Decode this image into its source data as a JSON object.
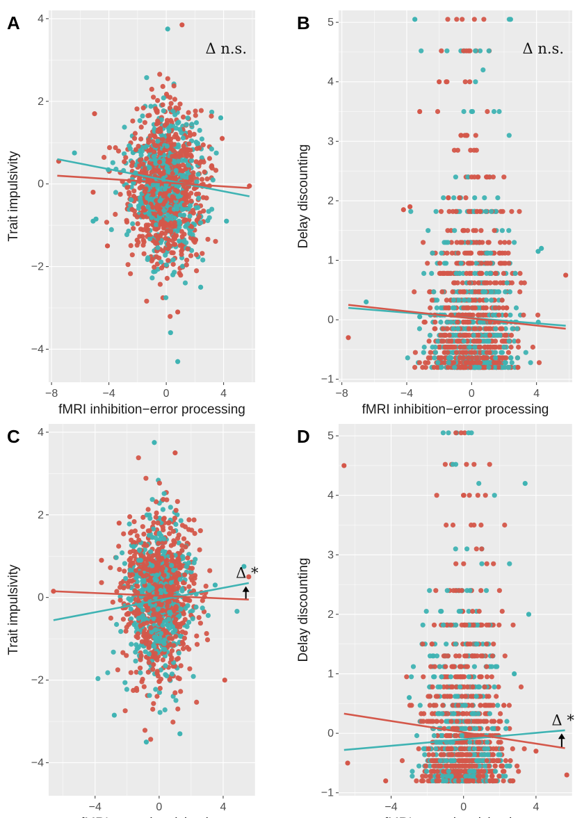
{
  "colors": {
    "group_red": "#d4574a",
    "group_teal": "#3fb3b3",
    "panel_bg": "#ebebeb",
    "grid": "#ffffff"
  },
  "chart_data": [
    {
      "letter": "A",
      "type": "scatter",
      "xlabel": "fMRI inhibition−error processing",
      "ylabel": "Trait impulsivity",
      "xlim": [
        -8.2,
        6.2
      ],
      "ylim": [
        -4.8,
        4.2
      ],
      "xticks": [
        -8,
        -4,
        0,
        4
      ],
      "yticks": [
        -4,
        -2,
        0,
        2,
        4
      ],
      "grid": true,
      "annotation": {
        "text": "Δ n.s.",
        "arrow": false
      },
      "lines": [
        {
          "color": "teal",
          "x": [
            -7.6,
            5.8
          ],
          "y": [
            0.6,
            -0.3
          ]
        },
        {
          "color": "red",
          "x": [
            -7.6,
            5.8
          ],
          "y": [
            0.2,
            -0.1
          ]
        }
      ],
      "scatter": {
        "discrete": false,
        "n": 1300,
        "sdx": 1.35,
        "sdy": 0.95,
        "meany": 0.0,
        "outliers_red": [
          [
            -7.5,
            0.55
          ],
          [
            -5.0,
            1.7
          ],
          [
            -5.1,
            -0.2
          ],
          [
            -4.1,
            -1.5
          ],
          [
            3.9,
            1.1
          ],
          [
            5.8,
            -0.05
          ],
          [
            1.1,
            3.85
          ],
          [
            0.8,
            -3.1
          ]
        ],
        "outliers_teal": [
          [
            -6.4,
            0.75
          ],
          [
            -4.9,
            -0.85
          ],
          [
            -5.1,
            -0.9
          ],
          [
            3.8,
            1.6
          ],
          [
            4.2,
            -0.9
          ],
          [
            0.1,
            3.75
          ],
          [
            0.8,
            -4.3
          ],
          [
            0.3,
            -3.6
          ],
          [
            2.4,
            -2.5
          ]
        ]
      }
    },
    {
      "letter": "B",
      "type": "scatter",
      "xlabel": "fMRI inhibition−error processing",
      "ylabel": "Delay discounting",
      "xlim": [
        -8.2,
        6.2
      ],
      "ylim": [
        -1.05,
        5.2
      ],
      "xticks": [
        -8,
        -4,
        0,
        4
      ],
      "yticks": [
        -1,
        0,
        1,
        2,
        3,
        4,
        5
      ],
      "grid": true,
      "annotation": {
        "text": "Δ n.s.",
        "arrow": false
      },
      "lines": [
        {
          "color": "teal",
          "x": [
            -7.6,
            5.8
          ],
          "y": [
            0.2,
            -0.1
          ]
        },
        {
          "color": "red",
          "x": [
            -7.6,
            5.8
          ],
          "y": [
            0.25,
            -0.15
          ]
        }
      ],
      "scatter": {
        "discrete": true,
        "n": 1300,
        "sdx": 1.3,
        "outliers_red": [
          [
            -7.6,
            -0.3
          ],
          [
            -4.2,
            1.85
          ],
          [
            -3.8,
            1.9
          ],
          [
            5.8,
            0.75
          ],
          [
            -3.2,
            3.5
          ],
          [
            -2.0,
            4.0
          ]
        ],
        "outliers_teal": [
          [
            -3.5,
            5.05
          ],
          [
            2.4,
            5.05
          ],
          [
            -6.5,
            0.3
          ],
          [
            4.1,
            1.15
          ],
          [
            4.3,
            1.2
          ],
          [
            -3.2,
            0.05
          ]
        ]
      }
    },
    {
      "letter": "C",
      "type": "scatter",
      "xlabel": "fMRI reward anticipation",
      "ylabel": "Trait impulsivity",
      "xlim": [
        -6.9,
        6.0
      ],
      "ylim": [
        -4.8,
        4.2
      ],
      "xticks": [
        -4,
        0,
        4
      ],
      "yticks": [
        -4,
        -2,
        0,
        2,
        4
      ],
      "grid": true,
      "annotation": {
        "text": "Δ *",
        "arrow": true
      },
      "lines": [
        {
          "color": "teal",
          "x": [
            -6.6,
            5.6
          ],
          "y": [
            -0.55,
            0.35
          ]
        },
        {
          "color": "red",
          "x": [
            -6.6,
            5.6
          ],
          "y": [
            0.15,
            -0.05
          ]
        }
      ],
      "scatter": {
        "discrete": false,
        "n": 1300,
        "sdx": 1.1,
        "sdy": 0.95,
        "meany": 0.0,
        "outliers_red": [
          [
            -6.6,
            0.15
          ],
          [
            -3.6,
            0.9
          ],
          [
            4.1,
            -2.0
          ],
          [
            5.6,
            0.5
          ],
          [
            -2.5,
            1.8
          ],
          [
            1.0,
            3.5
          ]
        ],
        "outliers_teal": [
          [
            -2.8,
            -2.85
          ],
          [
            -0.8,
            -3.5
          ],
          [
            1.3,
            -3.3
          ],
          [
            -0.3,
            3.75
          ],
          [
            3.5,
            0.3
          ],
          [
            5.3,
            0.75
          ]
        ]
      }
    },
    {
      "letter": "D",
      "type": "scatter",
      "xlabel": "fMRI reward anticipation",
      "ylabel": "Delay discounting",
      "xlim": [
        -6.9,
        6.0
      ],
      "ylim": [
        -1.05,
        5.2
      ],
      "xticks": [
        -4,
        0,
        4
      ],
      "yticks": [
        -1,
        0,
        1,
        2,
        3,
        4,
        5
      ],
      "grid": true,
      "annotation": {
        "text": "Δ *",
        "arrow": true
      },
      "lines": [
        {
          "color": "teal",
          "x": [
            -6.6,
            5.6
          ],
          "y": [
            -0.28,
            0.05
          ]
        },
        {
          "color": "red",
          "x": [
            -6.6,
            5.6
          ],
          "y": [
            0.33,
            -0.25
          ]
        }
      ],
      "scatter": {
        "discrete": true,
        "n": 1300,
        "sdx": 1.1,
        "outliers_red": [
          [
            -6.6,
            4.5
          ],
          [
            -6.4,
            -0.5
          ],
          [
            5.7,
            -0.7
          ],
          [
            4.0,
            -0.3
          ],
          [
            -4.3,
            -0.8
          ]
        ],
        "outliers_teal": [
          [
            3.4,
            4.2
          ],
          [
            3.6,
            2.0
          ],
          [
            -3.0,
            0.6
          ],
          [
            2.8,
            1.0
          ]
        ]
      }
    }
  ]
}
